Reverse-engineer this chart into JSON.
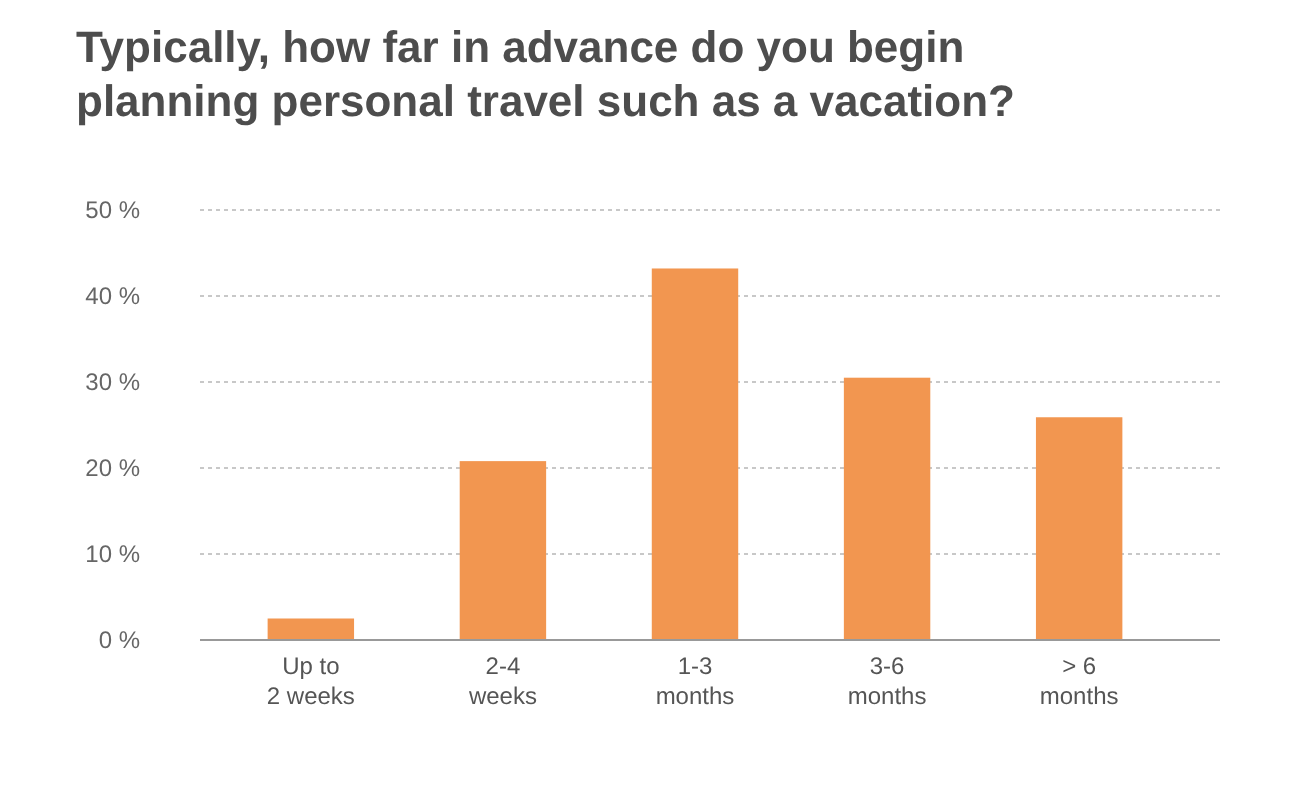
{
  "chart_data": {
    "type": "bar",
    "title": "Typically, how far in advance do you begin planning personal travel such as a vacation?",
    "categories": [
      "Up to\n2 weeks",
      "2-4\nweeks",
      "1-3\nmonths",
      "3-6\nmonths",
      "> 6\nmonths"
    ],
    "values": [
      2.5,
      20.8,
      43.2,
      30.5,
      25.9
    ],
    "color": "#f29650",
    "ylim": [
      0,
      50
    ],
    "yticks": [
      {
        "value": 0,
        "label": "0 %"
      },
      {
        "value": 10,
        "label": "10 %"
      },
      {
        "value": 20,
        "label": "20 %"
      },
      {
        "value": 30,
        "label": "30 %"
      },
      {
        "value": 40,
        "label": "40 %"
      },
      {
        "value": 50,
        "label": "50 %"
      }
    ],
    "grid": "y"
  }
}
